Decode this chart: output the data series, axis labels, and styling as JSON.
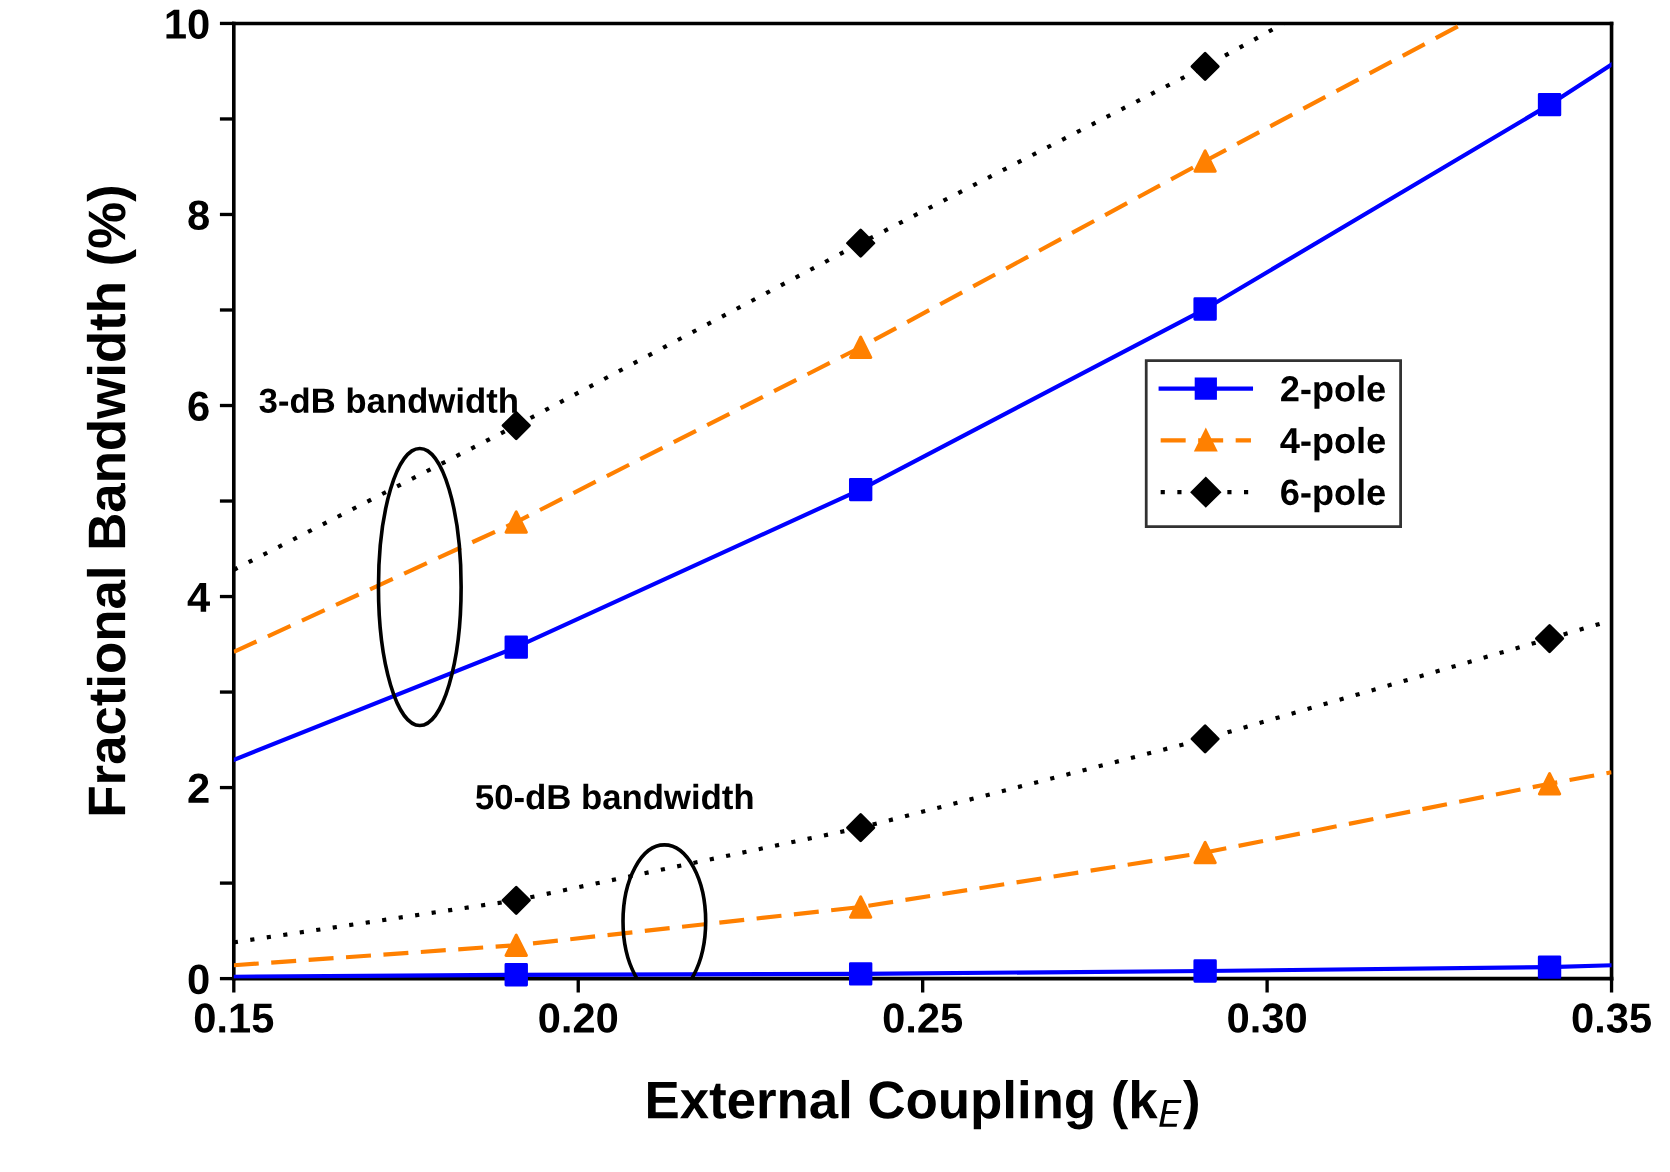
{
  "chart_data": {
    "type": "scatter",
    "xlabel": "External Coupling (k$_{E}$)",
    "ylabel": "Fractional Bandwidth (%)",
    "xlim": [
      0.15,
      0.35
    ],
    "xticks": [
      {
        "value": 0.15,
        "label": "0.15"
      },
      {
        "value": 0.2,
        "label": "0.20"
      },
      {
        "value": 0.25,
        "label": "0.25"
      },
      {
        "value": 0.3,
        "label": "0.30"
      },
      {
        "value": 0.35,
        "label": "0.35"
      }
    ],
    "ylim": [
      0,
      10
    ],
    "yticks": [
      0,
      {
        "value": 1,
        "label": null
      },
      2,
      {
        "value": 3,
        "label": null
      },
      4,
      {
        "value": 5,
        "label": null
      },
      6,
      {
        "value": 7,
        "label": null
      },
      8,
      {
        "value": 9,
        "label": null
      },
      10
    ],
    "grid": false,
    "legend": "right",
    "annotations": [
      "3-dB bandwidth",
      "50-dB bandwidth"
    ],
    "series": [
      {
        "name": "2-pole",
        "color": "#0000ff",
        "marker": "square",
        "line_style": "solid",
        "x": [
          0.191,
          0.241,
          0.291,
          0.341
        ],
        "values": [
          3.47,
          5.12,
          7.01,
          9.15
        ]
      },
      {
        "name": "4-pole",
        "color": "#ff8000",
        "marker": "triangle",
        "line_style": "dashed",
        "x": [
          0.191,
          0.241,
          0.291
        ],
        "values": [
          4.78,
          6.61,
          8.56
        ]
      },
      {
        "name": "6-pole",
        "color": "#000000",
        "marker": "diamond",
        "line_style": "dotted",
        "x": [
          0.191,
          0.241,
          0.291
        ],
        "values": [
          5.79,
          7.7,
          9.55
        ]
      },
      {
        "color": "#0000ff",
        "marker": "square",
        "x": [
          0.191,
          0.241,
          0.291,
          0.341
        ],
        "values": [
          0.04,
          0.05,
          0.08,
          0.12
        ]
      },
      {
        "color": "#ff8000",
        "marker": "triangle",
        "x": [
          0.191,
          0.241,
          0.291,
          0.341
        ],
        "values": [
          0.35,
          0.75,
          1.32,
          2.04
        ]
      },
      {
        "color": "#000000",
        "marker": "diamond",
        "x": [
          0.191,
          0.241,
          0.291,
          0.341
        ],
        "values": [
          0.82,
          1.58,
          2.51,
          3.56
        ]
      },
      {
        "type": "line",
        "color": "#0000ff",
        "line_style": "solid",
        "x": [
          0.15,
          0.191,
          0.241,
          0.291,
          0.341,
          0.35
        ],
        "values": [
          2.29,
          3.47,
          5.12,
          7.01,
          9.15,
          9.57
        ]
      },
      {
        "type": "line",
        "color": "#ff8000",
        "line_style": "dashed",
        "x": [
          0.15,
          0.191,
          0.241,
          0.291,
          0.3285
        ],
        "values": [
          3.42,
          4.78,
          6.61,
          8.56,
          10
        ]
      },
      {
        "type": "line",
        "color": "#000000",
        "line_style": "dotted",
        "x": [
          0.15,
          0.191,
          0.241,
          0.291,
          0.3024
        ],
        "values": [
          4.28,
          5.79,
          7.7,
          9.55,
          10
        ]
      },
      {
        "type": "line",
        "color": "#0000ff",
        "line_style": "solid",
        "x": [
          0.15,
          0.191,
          0.241,
          0.291,
          0.341,
          0.35
        ],
        "values": [
          0.02,
          0.04,
          0.05,
          0.08,
          0.12,
          0.14
        ]
      },
      {
        "type": "line",
        "color": "#ff8000",
        "line_style": "dashed",
        "x": [
          0.15,
          0.191,
          0.241,
          0.291,
          0.341,
          0.35
        ],
        "values": [
          0.14,
          0.35,
          0.75,
          1.32,
          2.04,
          2.16
        ]
      },
      {
        "type": "line",
        "color": "#000000",
        "line_style": "dotted",
        "x": [
          0.15,
          0.191,
          0.241,
          0.291,
          0.341,
          0.35
        ],
        "values": [
          0.38,
          0.82,
          1.58,
          2.51,
          3.56,
          3.75
        ]
      }
    ]
  }
}
